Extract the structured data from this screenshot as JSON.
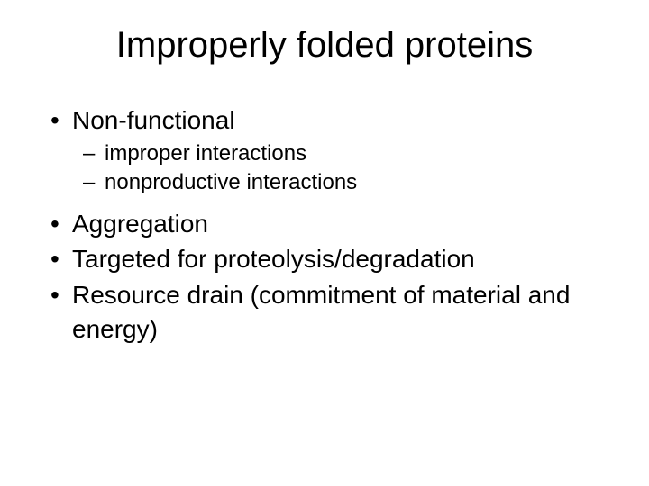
{
  "title": "Improperly folded proteins",
  "bullets": [
    {
      "text": "Non-functional",
      "sub": [
        "improper interactions",
        "nonproductive interactions"
      ]
    },
    {
      "text": "Aggregation",
      "sub": []
    },
    {
      "text": "Targeted for proteolysis/degradation",
      "sub": []
    },
    {
      "text": "Resource drain (commitment of material and energy)",
      "sub": []
    }
  ],
  "colors": {
    "background": "#ffffff",
    "text": "#000000"
  },
  "typography": {
    "title_fontsize": 40,
    "bullet_fontsize": 28,
    "sub_fontsize": 24,
    "font_family": "Arial"
  }
}
